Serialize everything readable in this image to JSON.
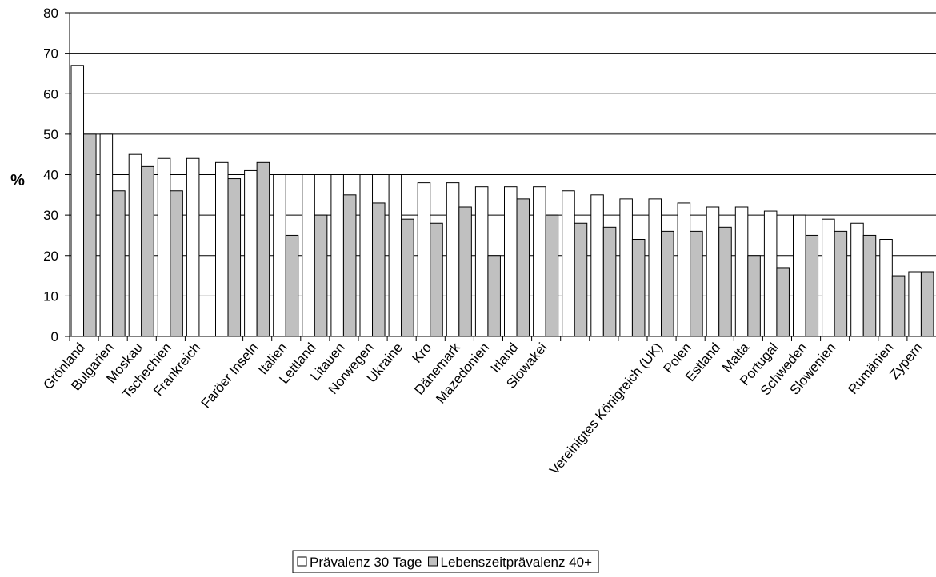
{
  "chart_data": {
    "type": "bar",
    "y_label": "%",
    "categories": [
      "Grönland",
      "Bulgarien",
      "Moskau",
      "Tschechien",
      "Frankreich",
      null,
      "Faröer Inseln",
      "Italien",
      "Lettland",
      "Litauen",
      "Norwegen",
      "Ukraine",
      "Kro",
      "Dänemark",
      "Mazedonien",
      "Irland",
      "Slowakei",
      null,
      null,
      null,
      "Vereinigtes Königreich (UK)",
      "Polen",
      "Estland",
      "Malta",
      "Portugal",
      "Schweden",
      "Slowenien",
      null,
      "Rumänien",
      "Zypern"
    ],
    "series": [
      {
        "name": "Prävalenz 30 Tage",
        "color": "#ffffff",
        "values": [
          67,
          50,
          45,
          44,
          44,
          43,
          41,
          40,
          40,
          40,
          40,
          40,
          38,
          38,
          37,
          37,
          37,
          36,
          35,
          34,
          34,
          33,
          32,
          32,
          31,
          30,
          29,
          28,
          24,
          16
        ]
      },
      {
        "name": "Lebenszeitprävalenz 40+",
        "color": "#c0c0c0",
        "values": [
          50,
          36,
          42,
          36,
          null,
          39,
          43,
          25,
          30,
          35,
          33,
          29,
          28,
          32,
          20,
          34,
          30,
          28,
          27,
          24,
          26,
          26,
          27,
          20,
          17,
          25,
          26,
          25,
          15,
          16
        ]
      }
    ],
    "ylim": [
      0,
      80
    ],
    "yticks": [
      0,
      10,
      20,
      30,
      40,
      50,
      60,
      70,
      80
    ],
    "grid": true,
    "legend": "bottom"
  }
}
